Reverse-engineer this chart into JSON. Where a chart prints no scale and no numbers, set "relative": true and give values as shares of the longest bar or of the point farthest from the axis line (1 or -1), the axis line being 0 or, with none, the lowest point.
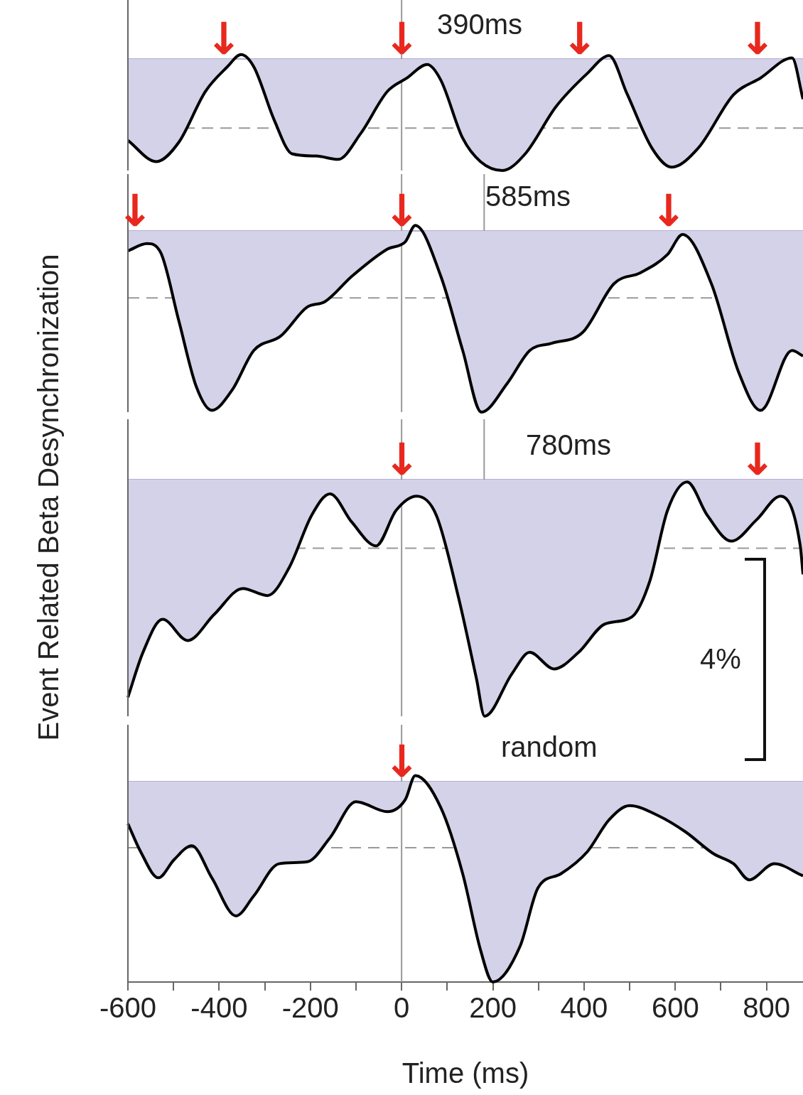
{
  "chart_data": [
    {
      "type": "area",
      "title": "390ms",
      "ylabel": "Event Related Beta Desynchronization",
      "relative": true,
      "tick_labels": false,
      "xlim": [
        -600,
        880
      ],
      "color": "#d4d2e8",
      "x": [
        -600,
        -538,
        -489,
        -430,
        -382,
        -352,
        -324,
        -279,
        -240,
        -187,
        -139,
        -90,
        -31,
        12,
        56,
        86,
        134,
        173,
        221,
        271,
        338,
        407,
        455,
        494,
        549,
        592,
        650,
        728,
        787,
        856,
        880
      ],
      "values": [
        -0.73,
        -0.92,
        -0.75,
        -0.29,
        -0.07,
        0.04,
        -0.07,
        -0.55,
        -0.85,
        -0.87,
        -0.9,
        -0.67,
        -0.29,
        -0.17,
        -0.05,
        -0.19,
        -0.71,
        -0.92,
        -1,
        -0.85,
        -0.43,
        -0.13,
        0.03,
        -0.31,
        -0.8,
        -0.97,
        -0.8,
        -0.32,
        -0.17,
        0.01,
        -0.36
      ],
      "ref_lines": [
        {
          "axis": "y",
          "value": -0.62,
          "line_style": "dashed",
          "color": "#999999"
        },
        {
          "axis": "x",
          "value": 0,
          "color": "#999999"
        }
      ],
      "annotations": [
        {
          "text": "↓",
          "x": -390,
          "y": 0
        },
        {
          "text": "↓",
          "x": 0,
          "y": 0
        },
        {
          "text": "↓",
          "x": 390,
          "y": 0
        },
        {
          "text": "↓",
          "x": 780,
          "y": 0
        }
      ]
    },
    {
      "type": "area",
      "title": "585ms",
      "relative": true,
      "tick_labels": false,
      "xlim": [
        -600,
        880
      ],
      "color": "#d4d2e8",
      "x": [
        -600,
        -558,
        -528,
        -489,
        -450,
        -416,
        -372,
        -324,
        -265,
        -207,
        -168,
        -109,
        -31,
        8,
        30,
        86,
        134,
        175,
        232,
        281,
        329,
        397,
        466,
        524,
        583,
        616,
        679,
        739,
        787,
        856,
        880
      ],
      "values": [
        -0.11,
        -0.07,
        -0.12,
        -0.49,
        -0.86,
        -0.99,
        -0.88,
        -0.66,
        -0.58,
        -0.42,
        -0.39,
        -0.25,
        -0.1,
        -0.06,
        0.03,
        -0.25,
        -0.66,
        -1,
        -0.84,
        -0.66,
        -0.62,
        -0.56,
        -0.29,
        -0.23,
        -0.13,
        -0.02,
        -0.29,
        -0.78,
        -0.99,
        -0.66,
        -0.69
      ],
      "ref_lines": [
        {
          "axis": "y",
          "value": -0.37,
          "line_style": "dashed",
          "color": "#999999"
        },
        {
          "axis": "x",
          "value": 0,
          "color": "#999999"
        },
        {
          "axis": "x",
          "value": 181,
          "color": "#999999"
        }
      ],
      "annotations": [
        {
          "text": "↓",
          "x": -585,
          "y": 0
        },
        {
          "text": "↓",
          "x": 0,
          "y": 0
        },
        {
          "text": "↓",
          "x": 585,
          "y": 0
        }
      ]
    },
    {
      "type": "area",
      "title": "780ms",
      "relative": true,
      "tick_labels": false,
      "xlim": [
        -600,
        880
      ],
      "color": "#d4d2e8",
      "x": [
        -600,
        -567,
        -524,
        -469,
        -411,
        -348,
        -294,
        -246,
        -197,
        -157,
        -109,
        -56,
        -12,
        33,
        76,
        125,
        164,
        182,
        242,
        281,
        334,
        388,
        446,
        505,
        544,
        583,
        626,
        670,
        723,
        778,
        831,
        874,
        880
      ],
      "values": [
        -0.92,
        -0.73,
        -0.59,
        -0.68,
        -0.57,
        -0.46,
        -0.49,
        -0.37,
        -0.15,
        -0.06,
        -0.18,
        -0.28,
        -0.13,
        -0.07,
        -0.15,
        -0.5,
        -0.84,
        -1,
        -0.82,
        -0.73,
        -0.8,
        -0.73,
        -0.61,
        -0.58,
        -0.43,
        -0.13,
        -0.01,
        -0.15,
        -0.26,
        -0.17,
        -0.07,
        -0.28,
        -0.4
      ],
      "ref_lines": [
        {
          "axis": "y",
          "value": -0.29,
          "line_style": "dashed",
          "color": "#999999"
        },
        {
          "axis": "x",
          "value": 0,
          "color": "#999999"
        },
        {
          "axis": "x",
          "value": 181,
          "color": "#999999"
        }
      ],
      "annotations": [
        {
          "text": "↓",
          "x": 0,
          "y": 0
        },
        {
          "text": "↓",
          "x": 780,
          "y": 0
        },
        "4%"
      ]
    },
    {
      "type": "area",
      "title": "random",
      "xlabel": "Time (ms)",
      "relative": true,
      "tick_labels": "x",
      "xlim": [
        -600,
        880
      ],
      "color": "#d4d2e8",
      "xticks": [
        -600,
        {
          "value": -500,
          "label": null
        },
        -400,
        {
          "value": -300,
          "label": null
        },
        -200,
        {
          "value": -100,
          "label": null
        },
        0,
        {
          "value": 100,
          "label": null
        },
        200,
        {
          "value": 300,
          "label": null
        },
        400,
        {
          "value": 500,
          "label": null
        },
        600,
        {
          "value": 700,
          "label": null
        },
        800
      ],
      "x": [
        -600,
        -572,
        -533,
        -499,
        -460,
        -416,
        -363,
        -324,
        -269,
        -207,
        -157,
        -100,
        -31,
        8,
        30,
        86,
        134,
        173,
        200,
        260,
        299,
        349,
        407,
        455,
        500,
        563,
        622,
        684,
        728,
        762,
        817,
        880
      ],
      "values": [
        -0.21,
        -0.35,
        -0.48,
        -0.39,
        -0.32,
        -0.48,
        -0.67,
        -0.57,
        -0.41,
        -0.4,
        -0.28,
        -0.1,
        -0.15,
        -0.09,
        0.03,
        -0.13,
        -0.46,
        -0.84,
        -1,
        -0.82,
        -0.53,
        -0.46,
        -0.35,
        -0.19,
        -0.12,
        -0.17,
        -0.25,
        -0.36,
        -0.41,
        -0.49,
        -0.41,
        -0.47
      ],
      "ref_lines": [
        {
          "axis": "y",
          "value": -0.33,
          "line_style": "dashed",
          "color": "#999999"
        },
        {
          "axis": "x",
          "value": 0,
          "color": "#999999"
        }
      ],
      "annotations": [
        {
          "text": "↓",
          "x": 0,
          "y": 0
        }
      ]
    }
  ]
}
